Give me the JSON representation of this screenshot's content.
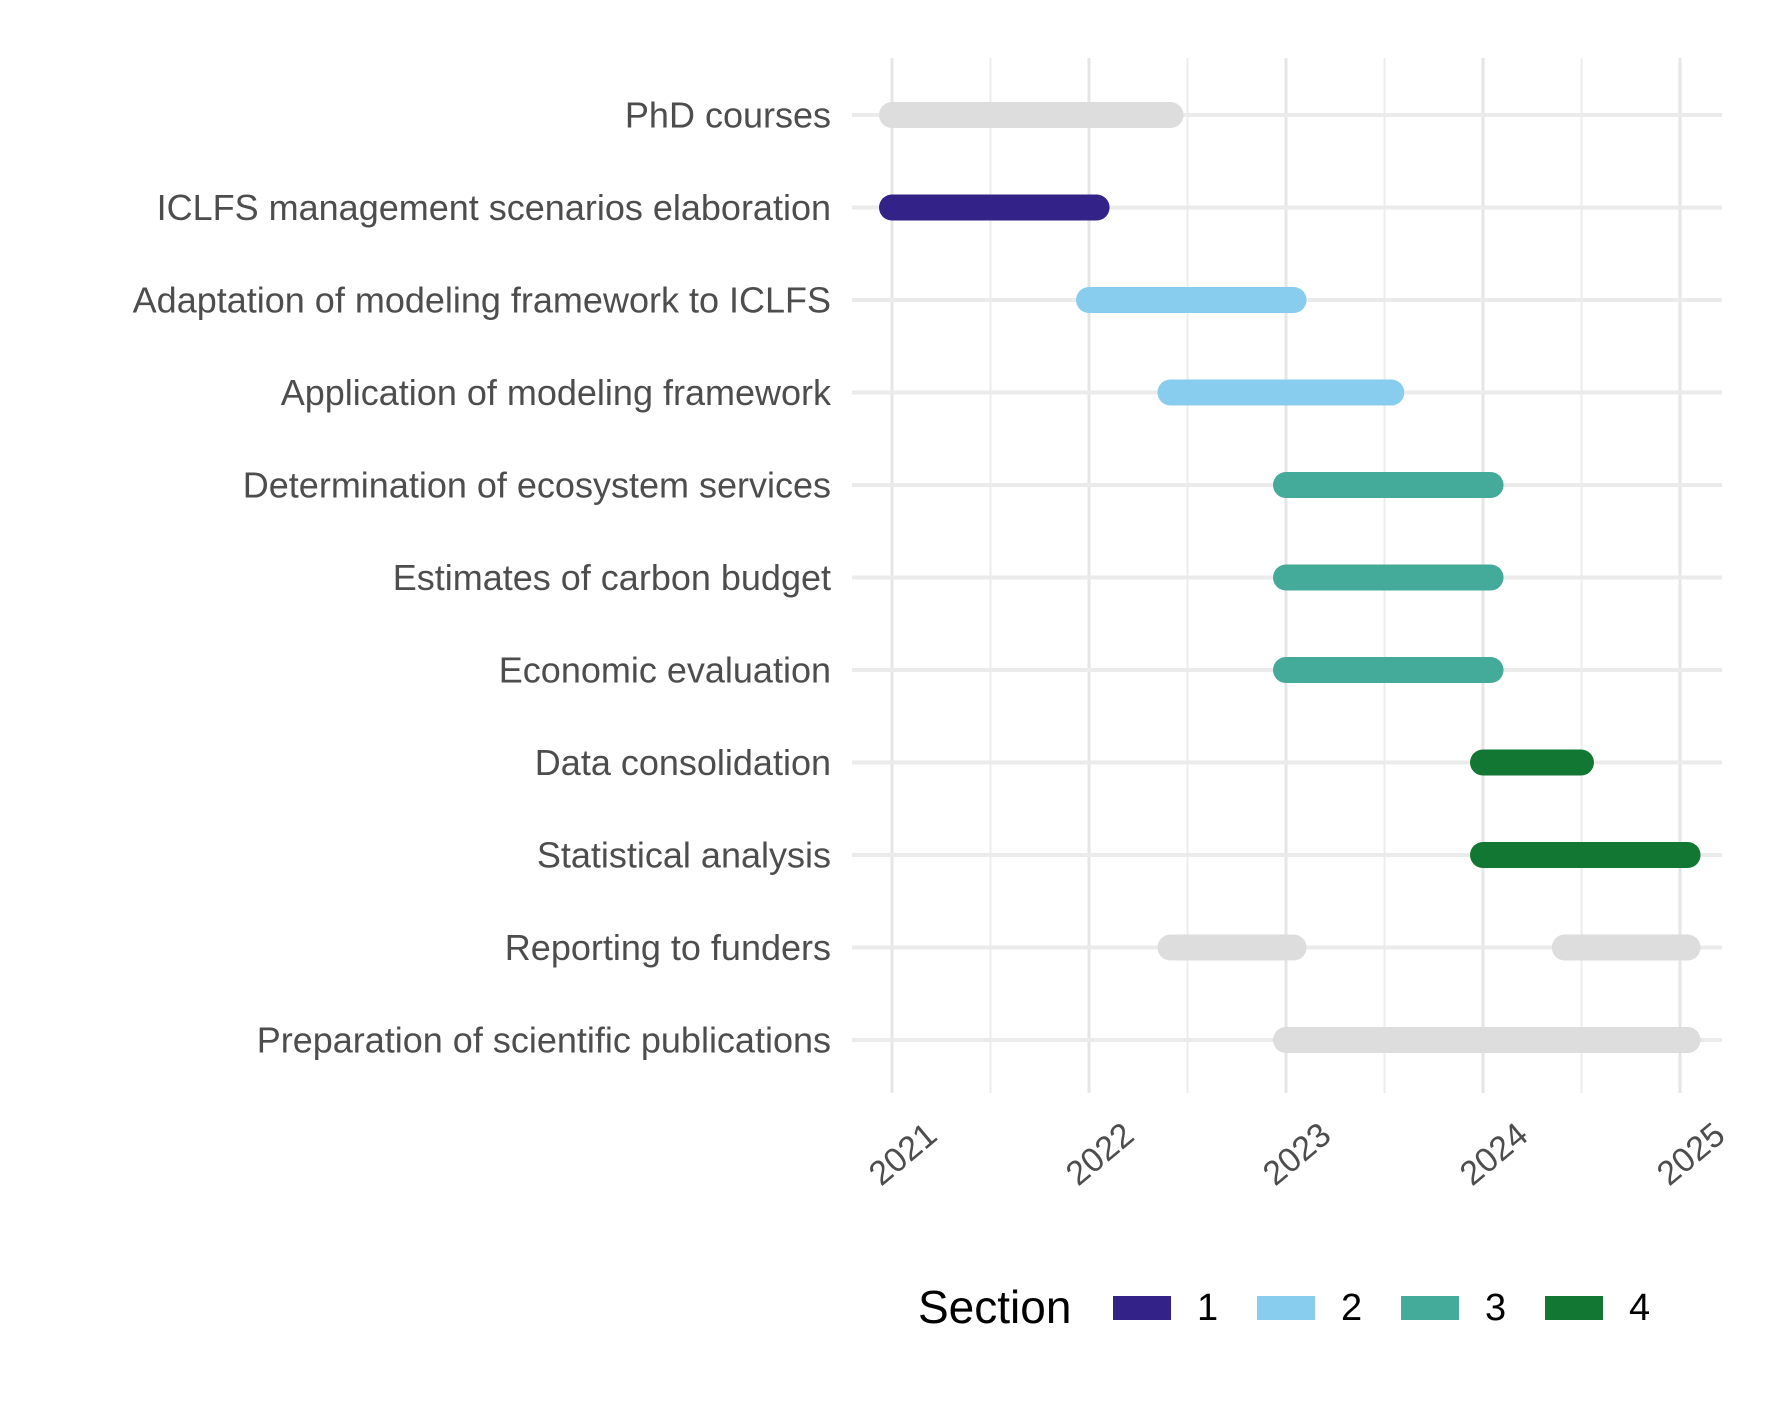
{
  "chart_data": {
    "type": "gantt",
    "xlabel": "",
    "ylabel": "",
    "x_ticks": [
      "2021",
      "2022",
      "2023",
      "2024",
      "2025"
    ],
    "x_range": [
      "2020-11-01",
      "2025-03-01"
    ],
    "grid": true,
    "legend_placement": "bottom",
    "legend": {
      "title": "Section",
      "items": [
        {
          "label": "1",
          "color": "#332288"
        },
        {
          "label": "2",
          "color": "#88CCEE"
        },
        {
          "label": "3",
          "color": "#44AA99"
        },
        {
          "label": "4",
          "color": "#117733"
        }
      ]
    },
    "no_section_color": "#DDDDDD",
    "tasks": [
      {
        "name": "PhD courses",
        "section": null,
        "segments": [
          [
            "2021-01-01",
            "2022-06-01"
          ]
        ]
      },
      {
        "name": "ICLFS management scenarios elaboration",
        "section": "1",
        "segments": [
          [
            "2021-01-01",
            "2022-01-15"
          ]
        ]
      },
      {
        "name": "Adaptation of modeling framework to ICLFS",
        "section": "2",
        "segments": [
          [
            "2022-01-01",
            "2023-01-15"
          ]
        ]
      },
      {
        "name": "Application of modeling framework",
        "section": "2",
        "segments": [
          [
            "2022-06-01",
            "2023-07-15"
          ]
        ]
      },
      {
        "name": "Determination of ecosystem services",
        "section": "3",
        "segments": [
          [
            "2023-01-01",
            "2024-01-15"
          ]
        ]
      },
      {
        "name": "Estimates of carbon budget",
        "section": "3",
        "segments": [
          [
            "2023-01-01",
            "2024-01-15"
          ]
        ]
      },
      {
        "name": "Economic evaluation",
        "section": "3",
        "segments": [
          [
            "2023-01-01",
            "2024-01-15"
          ]
        ]
      },
      {
        "name": "Data consolidation",
        "section": "4",
        "segments": [
          [
            "2024-01-01",
            "2024-07-01"
          ]
        ]
      },
      {
        "name": "Statistical analysis",
        "section": "4",
        "segments": [
          [
            "2024-01-01",
            "2025-01-15"
          ]
        ]
      },
      {
        "name": "Reporting to funders",
        "section": null,
        "segments": [
          [
            "2022-06-01",
            "2023-01-15"
          ],
          [
            "2024-06-01",
            "2025-01-15"
          ]
        ]
      },
      {
        "name": "Preparation of scientific publications",
        "section": null,
        "segments": [
          [
            "2023-01-01",
            "2025-01-15"
          ]
        ]
      }
    ]
  }
}
